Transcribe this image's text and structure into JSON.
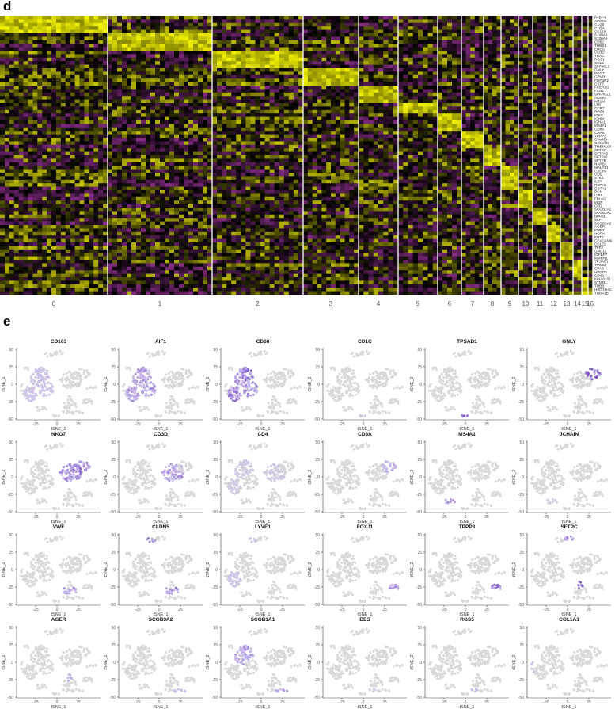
{
  "labels": {
    "heatmap_panel": "d",
    "tsne_panel": "e"
  },
  "colors": {
    "low": "#c341c3",
    "mid": "#000000",
    "high": "#f5f500",
    "expr_low": "#d9d9d9",
    "expr_high": "#5a2fb5",
    "separator": "#ffffff"
  },
  "chart_data": [
    {
      "type": "heatmap",
      "clusters": [
        "0",
        "1",
        "2",
        "3",
        "4",
        "5",
        "6",
        "7",
        "8",
        "9",
        "10",
        "11",
        "12",
        "13",
        "14",
        "15",
        "16"
      ],
      "genes": [
        "FABP4",
        "APOC1",
        "C1QB",
        "C1QA",
        "CCL18",
        "S100A8",
        "S100A9",
        "CD52",
        "THBS1",
        "EREG",
        "CD3D",
        "TRAC",
        "RGS1",
        "CCL4",
        "ZFP36L2",
        "GNLY",
        "NKG7",
        "GZMB",
        "FGFBP2",
        "CST7",
        "FCER1G",
        "FCN1",
        "SPARCL1",
        "ACKR1",
        "MT1M",
        "LTB",
        "CCR7",
        "RPS8",
        "IGKC",
        "IGHM",
        "IGHA1",
        "MS4A1",
        "CD83",
        "CAPS",
        "TPPP3",
        "C9orf24",
        "C20orf85",
        "TMEM190",
        "SFTPC",
        "SFTPA2",
        "SFTPA1",
        "SFTPB",
        "NAPSA",
        "MALAT1",
        "CXCR4",
        "CD2",
        "STK4",
        "IL7R",
        "RSPH1",
        "GSTA1",
        "DCN",
        "LUM",
        "FBLN1",
        "MGP",
        "CFD",
        "SCGB1A1",
        "SCGB3A1",
        "BPIFB1",
        "SLPI",
        "SCGB3A2",
        "AGER",
        "EMP2",
        "HOPX",
        "KRT7",
        "CEACAM6",
        "CCL21",
        "TFF3",
        "GNG11",
        "IGFBP7",
        "MMRN1",
        "TPSAB1",
        "TPSB2",
        "CPA3",
        "HPGDS",
        "CD69",
        "KIAA0101",
        "STMN1",
        "TUBB",
        "HIST1H4C",
        "TUBA1B"
      ],
      "marker_cluster": [
        0,
        0,
        0,
        0,
        0,
        1,
        1,
        1,
        1,
        1,
        2,
        2,
        2,
        2,
        2,
        3,
        3,
        3,
        3,
        3,
        4,
        4,
        4,
        4,
        4,
        5,
        5,
        5,
        6,
        6,
        6,
        6,
        6,
        7,
        7,
        7,
        7,
        7,
        8,
        8,
        8,
        8,
        8,
        9,
        9,
        9,
        9,
        9,
        9,
        9,
        10,
        10,
        10,
        10,
        10,
        11,
        11,
        11,
        11,
        11,
        12,
        12,
        12,
        12,
        12,
        13,
        13,
        13,
        13,
        13,
        14,
        14,
        14,
        14,
        14,
        15,
        15,
        15,
        15,
        15
      ],
      "color_scale": [
        "purple (low)",
        "black",
        "yellow (high)"
      ]
    },
    {
      "type": "scatter",
      "xlabel": "tSNE_1",
      "ylabel": "tSNE_2",
      "xticks": [
        -25,
        0,
        25
      ],
      "yticks": [
        50,
        25,
        0,
        -25,
        -50
      ],
      "xlim": [
        -45,
        50
      ],
      "ylim": [
        -50,
        50
      ],
      "panels": [
        {
          "gene": "CD163",
          "high": [
            "myeloid_a",
            "myeloid_b",
            "myeloid_c"
          ],
          "level": 0.45
        },
        {
          "gene": "AIF1",
          "high": [
            "myeloid_a",
            "myeloid_b",
            "myeloid_c"
          ],
          "level": 0.7
        },
        {
          "gene": "CD68",
          "high": [
            "myeloid_a",
            "myeloid_b",
            "myeloid_c"
          ],
          "level": 0.8
        },
        {
          "gene": "CD1C",
          "high": [
            "mast"
          ],
          "level": 0.3
        },
        {
          "gene": "TPSAB1",
          "high": [
            "mast"
          ],
          "level": 0.9
        },
        {
          "gene": "GNLY",
          "high": [
            "nk"
          ],
          "level": 0.9
        },
        {
          "gene": "NKG7",
          "high": [
            "nk",
            "tcell"
          ],
          "level": 0.85
        },
        {
          "gene": "CD3D",
          "high": [
            "tcell"
          ],
          "level": 0.7
        },
        {
          "gene": "CD4",
          "high": [
            "myeloid_a",
            "myeloid_b",
            "tcell"
          ],
          "level": 0.3
        },
        {
          "gene": "CD8A",
          "high": [
            "nk"
          ],
          "level": 0.6
        },
        {
          "gene": "MS4A1",
          "high": [
            "bcell"
          ],
          "level": 0.7
        },
        {
          "gene": "JCHAIN",
          "high": [
            "bcell"
          ],
          "level": 0.25
        },
        {
          "gene": "VWF",
          "high": [
            "endo"
          ],
          "level": 0.75
        },
        {
          "gene": "CLDN5",
          "high": [
            "endo",
            "lymph_endo"
          ],
          "level": 0.75
        },
        {
          "gene": "LYVE1",
          "high": [
            "lymph_endo",
            "myeloid_b"
          ],
          "level": 0.4
        },
        {
          "gene": "FOXJ1",
          "high": [
            "ciliated"
          ],
          "level": 0.7
        },
        {
          "gene": "TPPP3",
          "high": [
            "ciliated"
          ],
          "level": 0.85
        },
        {
          "gene": "SFTPC",
          "high": [
            "at2_top",
            "at1"
          ],
          "level": 0.85
        },
        {
          "gene": "AGER",
          "high": [
            "at1"
          ],
          "level": 0.75
        },
        {
          "gene": "SCGB3A2",
          "high": [
            "club"
          ],
          "level": 0.5
        },
        {
          "gene": "SCGB1A1",
          "high": [
            "club",
            "myeloid_a"
          ],
          "level": 0.7
        },
        {
          "gene": "DES",
          "high": [
            "pericyte"
          ],
          "level": 0.25
        },
        {
          "gene": "RGS5",
          "high": [
            "pericyte"
          ],
          "level": 0.5
        },
        {
          "gene": "COL1A1",
          "high": [
            "fibro"
          ],
          "level": 0.4
        }
      ]
    }
  ]
}
